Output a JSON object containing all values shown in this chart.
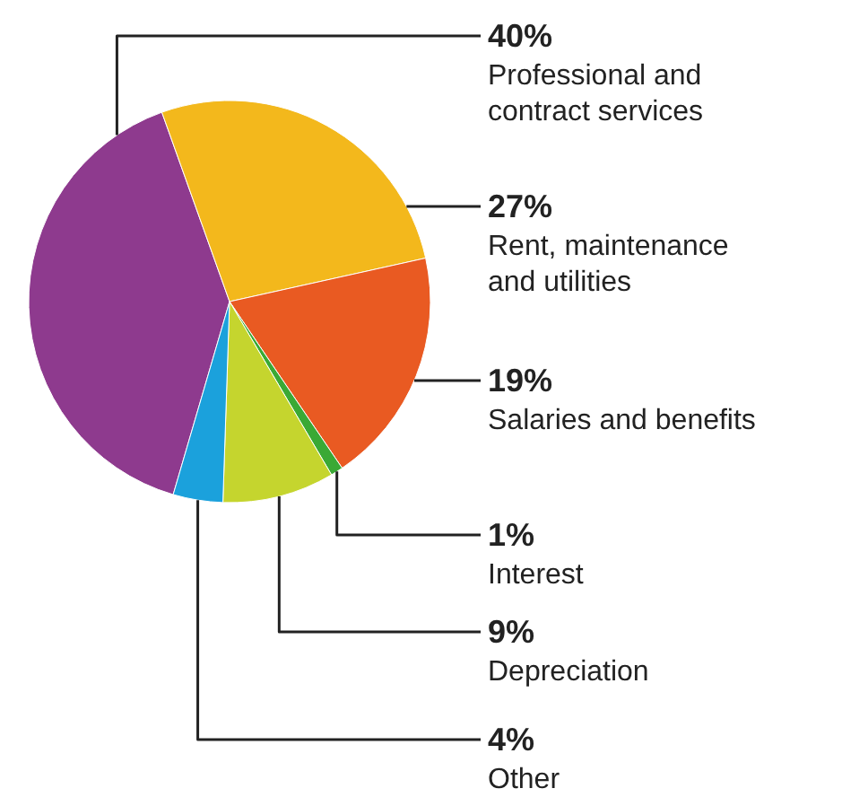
{
  "chart_data": {
    "type": "pie",
    "categories": [
      "Professional and contract services",
      "Rent, maintenance and utilities",
      "Salaries and benefits",
      "Interest",
      "Depreciation",
      "Other"
    ],
    "values": [
      40,
      27,
      19,
      1,
      9,
      4
    ],
    "value_labels": [
      "40%",
      "27%",
      "19%",
      "1%",
      "9%",
      "4%"
    ],
    "colors": [
      "#8e3a8e",
      "#f3b81c",
      "#e95a22",
      "#3aa935",
      "#c5d52e",
      "#1ba1dc"
    ]
  }
}
